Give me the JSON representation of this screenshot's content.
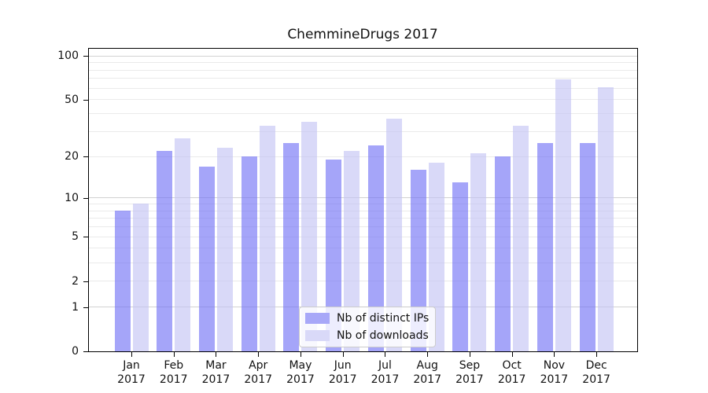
{
  "chart_data": {
    "type": "bar",
    "title": "ChemmineDrugs 2017",
    "yscale": "log1p",
    "categories": [
      "Jan",
      "Feb",
      "Mar",
      "Apr",
      "May",
      "Jun",
      "Jul",
      "Aug",
      "Sep",
      "Oct",
      "Nov",
      "Dec"
    ],
    "category_year": "2017",
    "series": [
      {
        "name": "Nb of distinct IPs",
        "color": "#a8a8f8",
        "fill": "rgba(110,110,245,0.62)",
        "values": [
          8,
          22,
          17,
          20,
          25,
          19,
          24,
          16,
          13,
          20,
          25,
          25
        ]
      },
      {
        "name": "Nb of downloads",
        "color": "#d9d9f8",
        "fill": "rgba(193,193,243,0.62)",
        "values": [
          9,
          27,
          23,
          33,
          35,
          22,
          37,
          18,
          21,
          33,
          69,
          61
        ]
      }
    ],
    "y_ticks": [
      100,
      50,
      20,
      10,
      5,
      2,
      1,
      0
    ],
    "ylim": [
      0,
      112
    ],
    "grid": {
      "major": [
        1,
        10,
        100
      ],
      "minor": [
        2,
        3,
        4,
        5,
        6,
        7,
        8,
        9,
        20,
        30,
        40,
        50,
        60,
        70,
        80,
        90
      ]
    },
    "legend_position": "lower center"
  }
}
